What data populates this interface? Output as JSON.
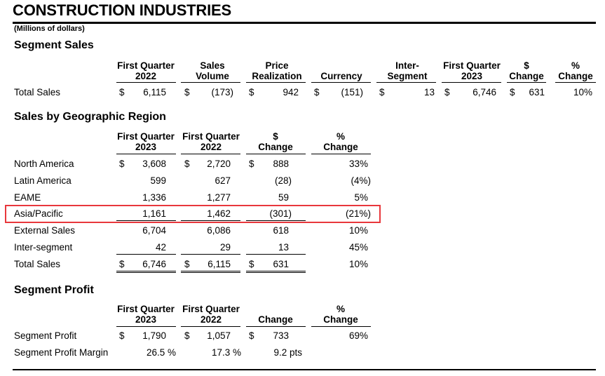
{
  "title": "CONSTRUCTION INDUSTRIES",
  "subtitle": "(Millions of dollars)",
  "segment_sales": {
    "heading": "Segment Sales",
    "headers": [
      [
        "First Quarter",
        "2022"
      ],
      [
        "Sales",
        "Volume"
      ],
      [
        "Price",
        "Realization"
      ],
      [
        "",
        "Currency"
      ],
      [
        "Inter-",
        "Segment"
      ],
      [
        "First Quarter",
        "2023"
      ],
      [
        "$",
        "Change"
      ],
      [
        "%",
        "Change"
      ]
    ],
    "rows": [
      {
        "label": "Total Sales",
        "values": [
          "6,115",
          "(173)",
          "942",
          "(151)",
          "13",
          "6,746",
          "631",
          "10%"
        ]
      }
    ]
  },
  "geo": {
    "heading": "Sales by Geographic Region",
    "headers": [
      [
        "First Quarter",
        "2023"
      ],
      [
        "First Quarter",
        "2022"
      ],
      [
        "$",
        "Change"
      ],
      [
        "%",
        "Change"
      ]
    ],
    "rows": [
      {
        "label": "North America",
        "values": [
          "3,608",
          "2,720",
          "888",
          "33%"
        ]
      },
      {
        "label": "Latin America",
        "values": [
          "599",
          "627",
          "(28)",
          "(4%)"
        ]
      },
      {
        "label": "EAME",
        "values": [
          "1,336",
          "1,277",
          "59",
          "5%"
        ]
      },
      {
        "label": "Asia/Pacific",
        "values": [
          "1,161",
          "1,462",
          "(301)",
          "(21%)"
        ]
      },
      {
        "label": "External Sales",
        "values": [
          "6,704",
          "6,086",
          "618",
          "10%"
        ]
      },
      {
        "label": "Inter-segment",
        "values": [
          "42",
          "29",
          "13",
          "45%"
        ]
      },
      {
        "label": "Total Sales",
        "values": [
          "6,746",
          "6,115",
          "631",
          "10%"
        ]
      }
    ]
  },
  "profit": {
    "heading": "Segment Profit",
    "headers": [
      [
        "First Quarter",
        "2023"
      ],
      [
        "First Quarter",
        "2022"
      ],
      [
        "",
        "Change"
      ],
      [
        "%",
        "Change"
      ]
    ],
    "rows": [
      {
        "label": "Segment Profit",
        "values": [
          "1,790",
          "1,057",
          "733",
          "69%"
        ]
      },
      {
        "label": "Segment Profit Margin",
        "values": [
          "26.5 %",
          "17.3 %",
          "9.2 pts",
          ""
        ]
      }
    ]
  },
  "currency_symbol": "$",
  "highlight_color": "#e8373c"
}
